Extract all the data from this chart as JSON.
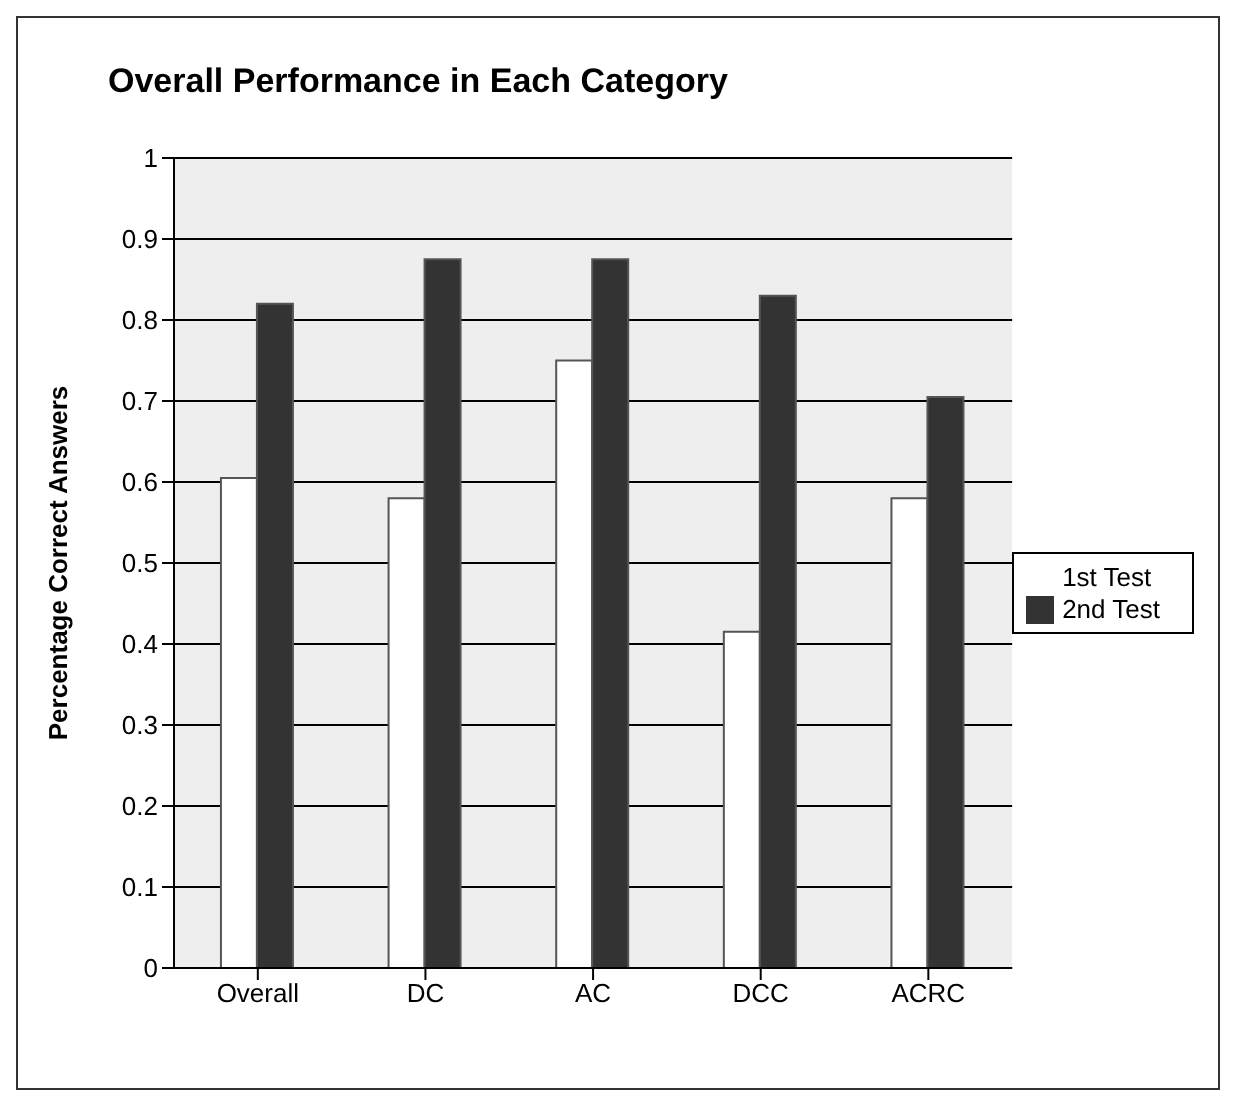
{
  "chart_data": {
    "type": "bar",
    "title": "Overall Performance in Each Category",
    "ylabel": "Percentage Correct Answers",
    "categories": [
      "Overall",
      "DC",
      "AC",
      "DCC",
      "ACRC"
    ],
    "series": [
      {
        "name": "1st Test",
        "color": "#ffffff",
        "values": [
          0.605,
          0.58,
          0.75,
          0.415,
          0.58
        ]
      },
      {
        "name": "2nd Test",
        "color": "#333333",
        "values": [
          0.82,
          0.875,
          0.875,
          0.83,
          0.705
        ]
      }
    ],
    "ylim": [
      0,
      1
    ],
    "yticks": [
      0,
      0.1,
      0.2,
      0.3,
      0.4,
      0.5,
      0.6,
      0.7,
      0.8,
      0.9,
      1
    ],
    "grid": "y",
    "legend": "right"
  }
}
